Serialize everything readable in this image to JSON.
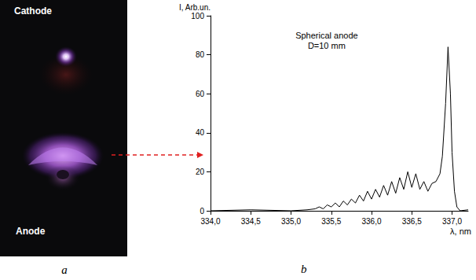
{
  "photo": {
    "texts": [
      "Cathode",
      "Anode"
    ],
    "panel_label": "a"
  },
  "chart_data": {
    "type": "line",
    "panel_label": "b",
    "title": "Spherical anode",
    "subtitle": "D=10 mm",
    "x_label": "λ, nm",
    "y_label": "I, Arb.un.",
    "x": [
      334.0,
      334.5,
      335.0,
      335.2,
      335.3,
      335.35,
      335.4,
      335.45,
      335.5,
      335.55,
      335.6,
      335.65,
      335.7,
      335.75,
      335.8,
      335.85,
      335.9,
      335.95,
      336.0,
      336.05,
      336.1,
      336.15,
      336.2,
      336.25,
      336.3,
      336.35,
      336.4,
      336.45,
      336.5,
      336.55,
      336.6,
      336.65,
      336.7,
      336.75,
      336.8,
      336.85,
      336.88,
      336.92,
      336.95,
      336.98,
      337.0,
      337.03,
      337.06,
      337.1,
      337.2
    ],
    "values": [
      0,
      0.5,
      0,
      0.5,
      1,
      2,
      1,
      3,
      2,
      4,
      2,
      5,
      3,
      6,
      4,
      8,
      5,
      10,
      6,
      11,
      7,
      13,
      8,
      15,
      9,
      17,
      11,
      20,
      12,
      19,
      11,
      15,
      10,
      14,
      15,
      19,
      28,
      55,
      84,
      60,
      30,
      10,
      2,
      0,
      0.5
    ],
    "color": "#000000",
    "xlim": [
      334,
      337.2
    ],
    "xticks": [
      {
        "value": 334,
        "label": "334,0"
      },
      {
        "value": 334.5,
        "label": "334,5"
      },
      {
        "value": 335,
        "label": "335,0"
      },
      {
        "value": 335.5,
        "label": "335,5"
      },
      {
        "value": 336,
        "label": "336,0"
      },
      {
        "value": 336.5,
        "label": "336,5"
      },
      {
        "value": 337,
        "label": "337,0"
      }
    ],
    "ylim": [
      0,
      100
    ],
    "yticks": [
      0,
      20,
      40,
      60,
      80,
      100
    ],
    "grid": false
  }
}
